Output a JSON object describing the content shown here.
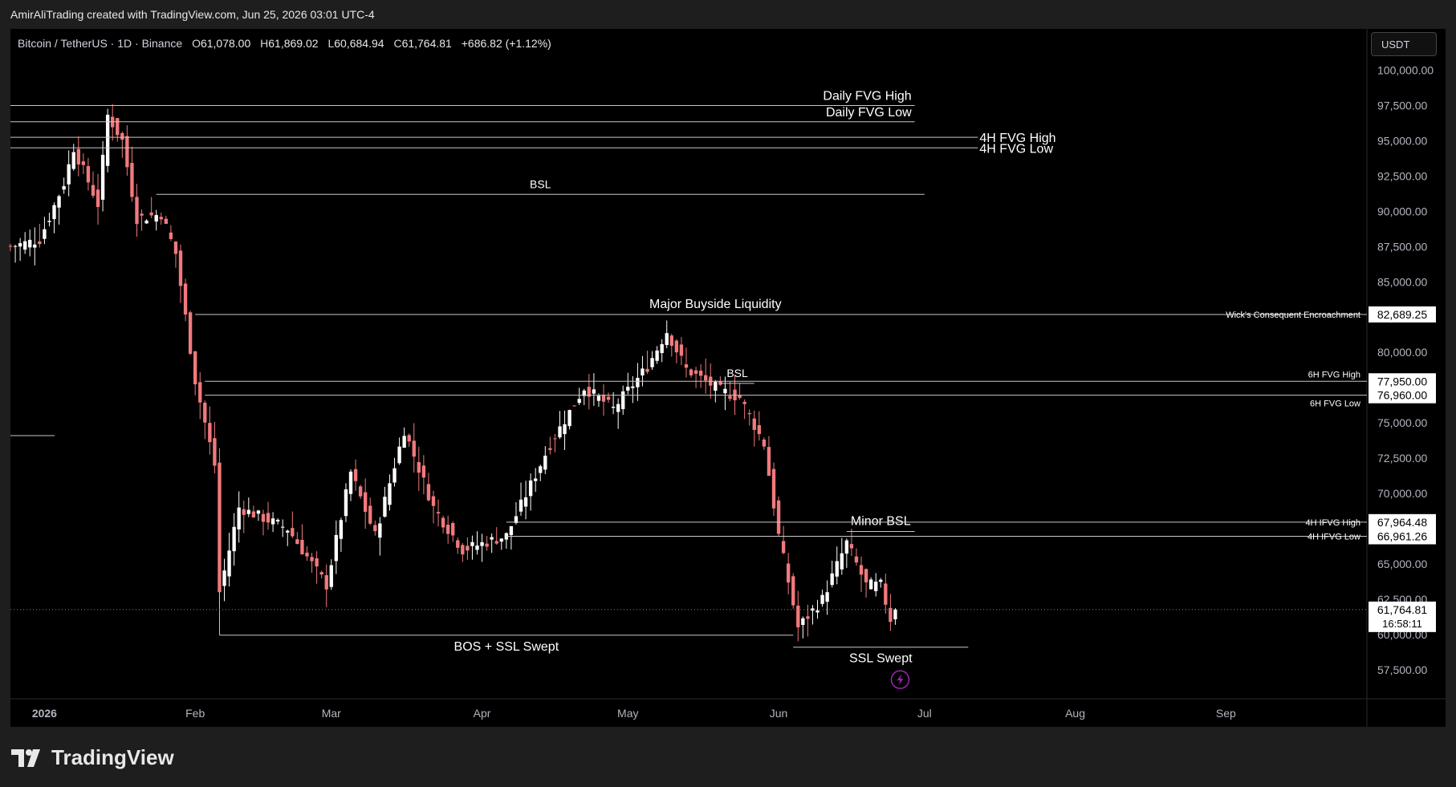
{
  "header": {
    "credit": "AmirAliTrading created with TradingView.com, Jun 25, 2026 03:01 UTC-4"
  },
  "legend": {
    "symbol": "Bitcoin / TetherUS · 1D · Binance",
    "open_label": "O",
    "open": "61,078.00",
    "high_label": "H",
    "high": "61,869.02",
    "low_label": "L",
    "low": "60,684.94",
    "close_label": "C",
    "close": "61,764.81",
    "change": "+686.82 (+1.12%)"
  },
  "currency": "USDT",
  "logo": {
    "word": "TradingView"
  },
  "colors": {
    "up": "#ffffff",
    "down": "#f0797c",
    "background": "#000000",
    "levels": "#c8c8c8"
  },
  "chart_data": {
    "type": "candlestick",
    "symbol": "BTCUSDT",
    "timeframe": "1D",
    "y_axis": {
      "range": [
        55500,
        101000
      ],
      "ticks": [
        "100,000.00",
        "97,500.00",
        "95,000.00",
        "92,500.00",
        "90,000.00",
        "87,500.00",
        "85,000.00",
        "82,500.00",
        "80,000.00",
        "77,500.00",
        "75,000.00",
        "72,500.00",
        "70,000.00",
        "67,500.00",
        "65,000.00",
        "62,500.00",
        "60,000.00",
        "57,500.00"
      ]
    },
    "x_axis": {
      "range": [
        "2025-12-25",
        "2026-09-30"
      ],
      "ticks": [
        {
          "date": "2026-01-01",
          "label": "2026"
        },
        {
          "date": "2026-02-01",
          "label": "Feb"
        },
        {
          "date": "2026-03-01",
          "label": "Mar"
        },
        {
          "date": "2026-04-01",
          "label": "Apr"
        },
        {
          "date": "2026-05-01",
          "label": "May"
        },
        {
          "date": "2026-06-01",
          "label": "Jun"
        },
        {
          "date": "2026-07-01",
          "label": "Jul"
        },
        {
          "date": "2026-08-01",
          "label": "Aug"
        },
        {
          "date": "2026-09-01",
          "label": "Sep"
        }
      ]
    },
    "anchors": [
      {
        "date": "2025-12-25",
        "close": 87500
      },
      {
        "date": "2025-12-31",
        "close": 88000
      },
      {
        "date": "2026-01-05",
        "close": 92000
      },
      {
        "date": "2026-01-07",
        "close": 94500
      },
      {
        "date": "2026-01-12",
        "close": 90500
      },
      {
        "date": "2026-01-14",
        "close": 96800
      },
      {
        "date": "2026-01-17",
        "close": 95000
      },
      {
        "date": "2026-01-20",
        "close": 89500
      },
      {
        "date": "2026-01-25",
        "close": 89800
      },
      {
        "date": "2026-01-28",
        "close": 87000
      },
      {
        "date": "2026-02-01",
        "close": 78000
      },
      {
        "date": "2026-02-05",
        "close": 72000
      },
      {
        "date": "2026-02-06",
        "close": 63000
      },
      {
        "date": "2026-02-10",
        "close": 69000
      },
      {
        "date": "2026-02-20",
        "close": 67500
      },
      {
        "date": "2026-02-28",
        "close": 63500
      },
      {
        "date": "2026-03-05",
        "close": 71500
      },
      {
        "date": "2026-03-10",
        "close": 67000
      },
      {
        "date": "2026-03-16",
        "close": 74500
      },
      {
        "date": "2026-03-22",
        "close": 69000
      },
      {
        "date": "2026-03-28",
        "close": 66000
      },
      {
        "date": "2026-04-06",
        "close": 67000
      },
      {
        "date": "2026-04-15",
        "close": 73500
      },
      {
        "date": "2026-04-22",
        "close": 77500
      },
      {
        "date": "2026-04-28",
        "close": 76000
      },
      {
        "date": "2026-05-05",
        "close": 79000
      },
      {
        "date": "2026-05-09",
        "close": 81500
      },
      {
        "date": "2026-05-13",
        "close": 78800
      },
      {
        "date": "2026-05-20",
        "close": 77300
      },
      {
        "date": "2026-05-24",
        "close": 76800
      },
      {
        "date": "2026-05-29",
        "close": 73500
      },
      {
        "date": "2026-06-01",
        "close": 67000
      },
      {
        "date": "2026-06-05",
        "close": 60500
      },
      {
        "date": "2026-06-10",
        "close": 62500
      },
      {
        "date": "2026-06-15",
        "close": 66500
      },
      {
        "date": "2026-06-19",
        "close": 63500
      },
      {
        "date": "2026-06-22",
        "close": 63500
      },
      {
        "date": "2026-06-24",
        "close": 61078
      },
      {
        "date": "2026-06-25",
        "close": 61764.81
      }
    ],
    "last_bar": {
      "open": 61078.0,
      "high": 61869.02,
      "low": 60684.94,
      "close": 61764.81
    },
    "current_price": {
      "value": 61764.81,
      "label": "61,764.81",
      "countdown": "16:58:11"
    },
    "levels": [
      {
        "label": "Daily FVG High",
        "price": 97500,
        "from": "2025-12-25",
        "to": "2026-06-29"
      },
      {
        "label": "Daily FVG Low",
        "price": 96350,
        "from": "2025-12-25",
        "to": "2026-06-29"
      },
      {
        "label": "4H FVG High",
        "price": 95250,
        "from": "2025-12-25",
        "to": "2026-07-12"
      },
      {
        "label": "4H FVG Low",
        "price": 94500,
        "from": "2025-12-25",
        "to": "2026-07-12"
      },
      {
        "label": "BSL",
        "price": 91200,
        "from": "2026-01-24",
        "to": "2026-07-01"
      },
      {
        "label": "Major Buyside Liquidity",
        "price": 82689.25,
        "from": "2026-05-07",
        "to": "2026-05-31"
      },
      {
        "label": "BSL",
        "price": 77800,
        "from": "2026-05-20",
        "to": "2026-05-27"
      },
      {
        "label": "Minor BSL",
        "price": 67300,
        "from": "2026-06-15",
        "to": "2026-06-29"
      },
      {
        "label": "BOS + SSL Swept",
        "price": 59950,
        "from": "2026-02-06",
        "to": "2026-06-04"
      },
      {
        "label": "SSL Swept",
        "price": 59100,
        "from": "2026-06-04",
        "to": "2026-07-10"
      }
    ],
    "axis_levels": [
      {
        "label": "Wick's Consequent Encroachment",
        "price": 82689.25,
        "value": "82,689.25",
        "from": "2026-02-01"
      },
      {
        "label": "6H FVG High",
        "price": 77950,
        "value": "77,950.00",
        "from": "2026-02-03"
      },
      {
        "label": "6H FVG Low",
        "price": 76960,
        "value": "76,960.00",
        "from": "2026-02-03"
      },
      {
        "label": "4H IFVG High",
        "price": 67964.48,
        "value": "67,964.48",
        "from": "2026-04-06"
      },
      {
        "label": "4H IFVG Low",
        "price": 66961.26,
        "value": "66,961.26",
        "from": "2026-04-06"
      }
    ],
    "grid": false,
    "legend_position": "top-left"
  }
}
